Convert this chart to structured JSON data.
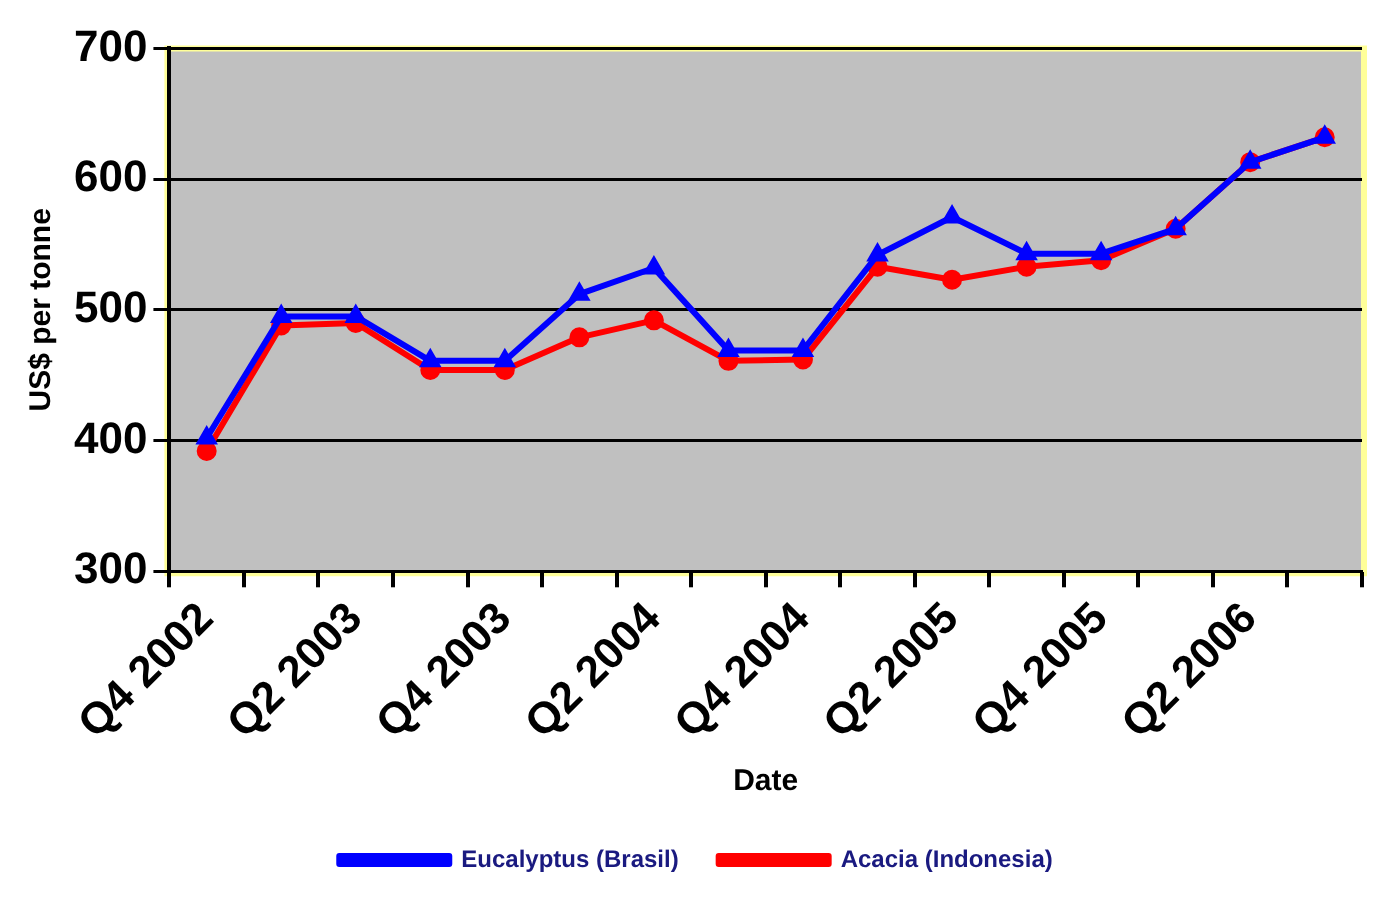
{
  "chart_data": {
    "type": "line",
    "xlabel": "Date",
    "ylabel": "US$ per tonne",
    "categories": [
      "Q4 2002",
      null,
      "Q2 2003",
      null,
      "Q4 2003",
      null,
      "Q2 2004",
      null,
      "Q4 2004",
      null,
      "Q2 2005",
      null,
      "Q4 2005",
      null,
      "Q2 2006",
      null
    ],
    "series": [
      {
        "name": "Eucalyptus (Brasil)",
        "color": "#0000ff",
        "marker": "triangle",
        "values": [
          402,
          495,
          495,
          461,
          461,
          512,
          532,
          469,
          469,
          542,
          571,
          543,
          543,
          562,
          613,
          632
        ]
      },
      {
        "name": "Acacia (Indonesia)",
        "color": "#ff0000",
        "marker": "circle",
        "values": [
          392,
          488,
          490,
          454,
          454,
          479,
          492,
          461,
          462,
          533,
          523,
          533,
          538,
          562,
          613,
          632
        ]
      }
    ],
    "ylim": [
      300,
      700
    ],
    "yticks": [
      300,
      400,
      500,
      600,
      700
    ],
    "grid": "y",
    "legend": "bottom",
    "line_style": "solid"
  }
}
